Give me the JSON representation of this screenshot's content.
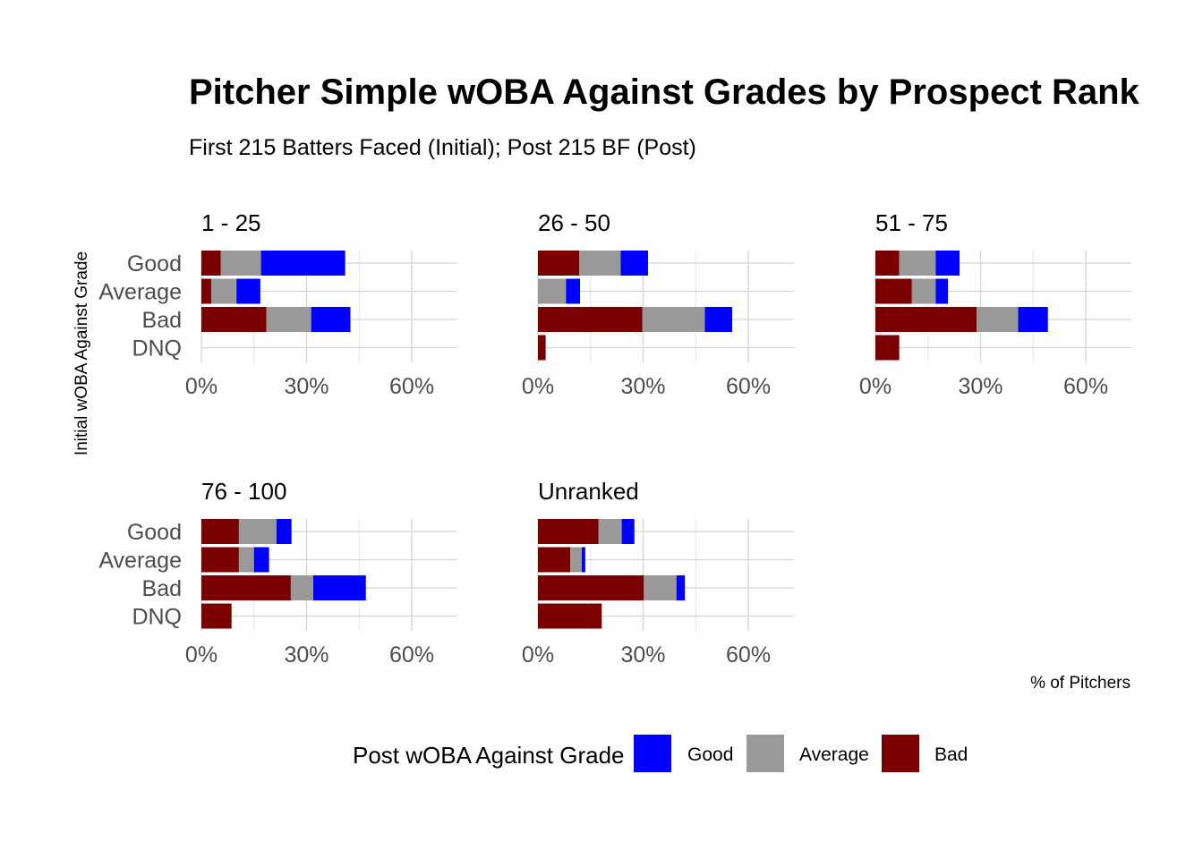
{
  "chart_data": {
    "type": "bar",
    "orientation": "horizontal",
    "stacked": true,
    "title": "Pitcher Simple wOBA Against Grades by Prospect Rank",
    "subtitle": "First 215 Batters Faced (Initial); Post 215 BF (Post)",
    "ylabel": "Initial wOBA Against Grade",
    "xlabel": "% of Pitchers",
    "xlim": [
      0,
      0.73
    ],
    "xticks": [
      0,
      0.3,
      0.6
    ],
    "xtick_labels": [
      "0%",
      "30%",
      "60%"
    ],
    "categories": [
      "Good",
      "Average",
      "Bad",
      "DNQ"
    ],
    "legend": {
      "title": "Post wOBA Against Grade",
      "position": "bottom",
      "entries": [
        {
          "name": "Good",
          "color": "#0000ff"
        },
        {
          "name": "Average",
          "color": "#999999"
        },
        {
          "name": "Bad",
          "color": "#7a0000"
        }
      ]
    },
    "stack_order": [
      "Bad",
      "Average",
      "Good"
    ],
    "colors": {
      "Good": "#0000ff",
      "Average": "#999999",
      "Bad": "#7a0000"
    },
    "panels": [
      {
        "label": "1 - 25",
        "series": [
          {
            "name": "Bad",
            "values": [
              0.055,
              0.028,
              0.185,
              0
            ]
          },
          {
            "name": "Average",
            "values": [
              0.115,
              0.072,
              0.128,
              0
            ]
          },
          {
            "name": "Good",
            "values": [
              0.24,
              0.068,
              0.112,
              0
            ]
          }
        ]
      },
      {
        "label": "26 - 50",
        "series": [
          {
            "name": "Bad",
            "values": [
              0.118,
              0,
              0.298,
              0.022
            ]
          },
          {
            "name": "Average",
            "values": [
              0.118,
              0.08,
              0.178,
              0
            ]
          },
          {
            "name": "Good",
            "values": [
              0.078,
              0.04,
              0.078,
              0
            ]
          }
        ]
      },
      {
        "label": "51 - 75",
        "series": [
          {
            "name": "Bad",
            "values": [
              0.068,
              0.104,
              0.289,
              0.068
            ]
          },
          {
            "name": "Average",
            "values": [
              0.104,
              0.068,
              0.118,
              0
            ]
          },
          {
            "name": "Good",
            "values": [
              0.068,
              0.035,
              0.085,
              0
            ]
          }
        ]
      },
      {
        "label": "76 - 100",
        "series": [
          {
            "name": "Bad",
            "values": [
              0.107,
              0.107,
              0.255,
              0.086
            ]
          },
          {
            "name": "Average",
            "values": [
              0.107,
              0.043,
              0.064,
              0
            ]
          },
          {
            "name": "Good",
            "values": [
              0.043,
              0.043,
              0.15,
              0
            ]
          }
        ]
      },
      {
        "label": "Unranked",
        "series": [
          {
            "name": "Bad",
            "values": [
              0.173,
              0.092,
              0.302,
              0.182
            ]
          },
          {
            "name": "Average",
            "values": [
              0.066,
              0.033,
              0.093,
              0
            ]
          },
          {
            "name": "Good",
            "values": [
              0.036,
              0.01,
              0.024,
              0
            ]
          }
        ]
      }
    ]
  }
}
